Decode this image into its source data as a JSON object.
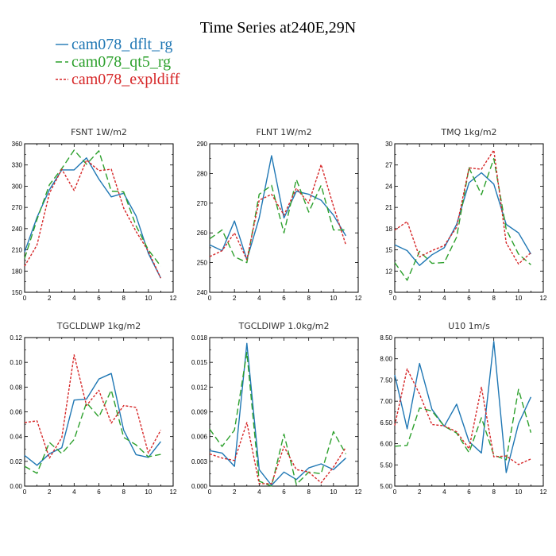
{
  "title": "Time Series at240E,29N",
  "colors": {
    "blue": "#1f77b4",
    "green": "#2ca02c",
    "red": "#d62728"
  },
  "chart_data": [
    {
      "type": "line",
      "title": "FSNT   1W/m2",
      "x": [
        0,
        1,
        2,
        3,
        4,
        5,
        6,
        7,
        8,
        9,
        10,
        11
      ],
      "xlim": [
        0,
        12
      ],
      "xticks": [
        "0",
        "2",
        "4",
        "6",
        "8",
        "10",
        "12"
      ],
      "ylim": [
        150,
        360
      ],
      "yticks": [
        "150",
        "180",
        "210",
        "240",
        "270",
        "300",
        "330",
        "360"
      ],
      "series": [
        {
          "name": "cam078_dflt_rg",
          "values": [
            207,
            256,
            295,
            323,
            323,
            340,
            310,
            285,
            290,
            258,
            205,
            170
          ]
        },
        {
          "name": "cam078_qt5_rg",
          "values": [
            198,
            253,
            302,
            325,
            351,
            331,
            350,
            293,
            292,
            244,
            210,
            187
          ]
        },
        {
          "name": "cam078_expldiff",
          "values": [
            187,
            217,
            290,
            324,
            294,
            337,
            322,
            324,
            269,
            236,
            208,
            170
          ]
        }
      ]
    },
    {
      "type": "line",
      "title": "FLNT   1W/m2",
      "x": [
        0,
        1,
        2,
        3,
        4,
        5,
        6,
        7,
        8,
        9,
        10,
        11
      ],
      "xlim": [
        0,
        12
      ],
      "xticks": [
        "0",
        "2",
        "4",
        "6",
        "8",
        "10",
        "12"
      ],
      "ylim": [
        240,
        290
      ],
      "yticks": [
        "240",
        "250",
        "260",
        "270",
        "280",
        "290"
      ],
      "series": [
        {
          "name": "cam078_dflt_rg",
          "values": [
            256,
            254,
            264,
            251,
            265,
            286,
            265,
            274,
            273,
            271,
            266,
            259
          ]
        },
        {
          "name": "cam078_qt5_rg",
          "values": [
            258,
            261,
            252,
            250,
            273,
            276,
            260,
            278,
            267,
            276,
            261,
            261
          ]
        },
        {
          "name": "cam078_expldiff",
          "values": [
            252,
            254,
            260,
            251,
            271,
            273,
            266,
            275,
            270,
            283,
            269,
            256
          ]
        }
      ]
    },
    {
      "type": "line",
      "title": "TMQ   1kg/m2",
      "x": [
        0,
        1,
        2,
        3,
        4,
        5,
        6,
        7,
        8,
        9,
        10,
        11
      ],
      "xlim": [
        0,
        12
      ],
      "xticks": [
        "0",
        "2",
        "4",
        "6",
        "8",
        "10",
        "12"
      ],
      "ylim": [
        9,
        30
      ],
      "yticks": [
        "9",
        "12",
        "15",
        "18",
        "21",
        "24",
        "27",
        "30"
      ],
      "series": [
        {
          "name": "cam078_dflt_rg",
          "values": [
            15.7,
            14.9,
            12.8,
            14.3,
            15.3,
            18.6,
            24.5,
            25.9,
            24.3,
            18.6,
            17.4,
            14.4
          ]
        },
        {
          "name": "cam078_qt5_rg",
          "values": [
            13.2,
            10.7,
            14.8,
            13.1,
            13.2,
            16.8,
            26.6,
            22.8,
            27.9,
            17.9,
            14.4,
            12.9
          ]
        },
        {
          "name": "cam078_expldiff",
          "values": [
            17.8,
            19.0,
            14.0,
            14.9,
            15.6,
            18.2,
            26.6,
            26.4,
            29.1,
            16.0,
            13.0,
            14.6
          ]
        }
      ]
    },
    {
      "type": "line",
      "title": "TGCLDLWP   1kg/m2",
      "x": [
        0,
        1,
        2,
        3,
        4,
        5,
        6,
        7,
        8,
        9,
        10,
        11
      ],
      "xlim": [
        0,
        12
      ],
      "xticks": [
        "0",
        "2",
        "4",
        "6",
        "8",
        "10",
        "12"
      ],
      "ylim": [
        0,
        0.12
      ],
      "yticks": [
        "0.00",
        "0.02",
        "0.04",
        "0.06",
        "0.08",
        "0.10",
        "0.12"
      ],
      "series": [
        {
          "name": "cam078_dflt_rg",
          "values": [
            0.0248,
            0.0168,
            0.0261,
            0.031,
            0.0695,
            0.0703,
            0.0865,
            0.091,
            0.0452,
            0.0254,
            0.0232,
            0.036
          ]
        },
        {
          "name": "cam078_qt5_rg",
          "values": [
            0.016,
            0.0103,
            0.0353,
            0.0263,
            0.0377,
            0.0674,
            0.0558,
            0.0775,
            0.0394,
            0.0333,
            0.0237,
            0.0256
          ]
        },
        {
          "name": "cam078_expldiff",
          "values": [
            0.0514,
            0.0527,
            0.0226,
            0.0392,
            0.106,
            0.0651,
            0.0774,
            0.0509,
            0.0651,
            0.0636,
            0.0266,
            0.0453
          ]
        }
      ]
    },
    {
      "type": "line",
      "title": "TGCLDIWP   1.0kg/m2",
      "x": [
        0,
        1,
        2,
        3,
        4,
        5,
        6,
        7,
        8,
        9,
        10,
        11
      ],
      "xlim": [
        0,
        12
      ],
      "xticks": [
        "0",
        "2",
        "4",
        "6",
        "8",
        "10",
        "12"
      ],
      "ylim": [
        0,
        0.018
      ],
      "yticks": [
        "0.000",
        "0.003",
        "0.006",
        "0.009",
        "0.012",
        "0.015",
        "0.018"
      ],
      "series": [
        {
          "name": "cam078_dflt_rg",
          "values": [
            0.0043,
            0.004,
            0.0024,
            0.0173,
            0.002,
            0.0001,
            0.0017,
            0.0008,
            0.0022,
            0.0027,
            0.002,
            0.0034
          ]
        },
        {
          "name": "cam078_qt5_rg",
          "values": [
            0.0069,
            0.0048,
            0.0068,
            0.0162,
            0.0006,
            0.0,
            0.0063,
            0.0002,
            0.0017,
            0.0015,
            0.0066,
            0.0039
          ]
        },
        {
          "name": "cam078_expldiff",
          "values": [
            0.0039,
            0.0034,
            0.0031,
            0.0077,
            0.0003,
            0.0003,
            0.0048,
            0.002,
            0.0017,
            0.0004,
            0.0023,
            0.0047
          ]
        }
      ]
    },
    {
      "type": "line",
      "title": "U10   1m/s",
      "x": [
        0,
        1,
        2,
        3,
        4,
        5,
        6,
        7,
        8,
        9,
        10,
        11
      ],
      "xlim": [
        0,
        12
      ],
      "xticks": [
        "0",
        "2",
        "4",
        "6",
        "8",
        "10",
        "12"
      ],
      "ylim": [
        5.0,
        8.5
      ],
      "yticks": [
        "5.00",
        "5.50",
        "6.00",
        "6.50",
        "7.00",
        "7.50",
        "8.00",
        "8.50"
      ],
      "series": [
        {
          "name": "cam078_dflt_rg",
          "values": [
            7.62,
            6.35,
            7.89,
            6.81,
            6.41,
            6.93,
            6.05,
            5.78,
            8.41,
            5.32,
            6.47,
            7.1
          ]
        },
        {
          "name": "cam078_qt5_rg",
          "values": [
            5.94,
            5.96,
            6.84,
            6.77,
            6.41,
            6.25,
            5.79,
            6.61,
            5.73,
            5.62,
            7.28,
            6.26
          ]
        },
        {
          "name": "cam078_expldiff",
          "values": [
            6.43,
            7.76,
            7.17,
            6.45,
            6.42,
            6.28,
            5.88,
            7.33,
            5.69,
            5.71,
            5.51,
            5.64
          ]
        }
      ]
    }
  ]
}
